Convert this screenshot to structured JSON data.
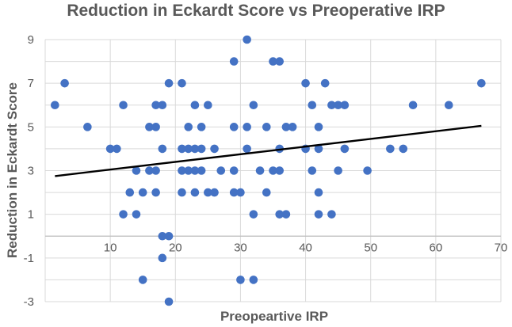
{
  "chart_data": {
    "type": "scatter",
    "title": "Reduction in Eckardt Score vs Preoperative IRP",
    "xlabel": "Preopeartive IRP",
    "ylabel": "Reduction in Eckardt Score",
    "xlim": [
      0,
      70
    ],
    "ylim": [
      -3,
      9
    ],
    "x_ticks": [
      10,
      20,
      30,
      40,
      50,
      60,
      70
    ],
    "y_ticks": [
      -3,
      -1,
      1,
      3,
      5,
      7,
      9
    ],
    "grid": true,
    "marker_color": "#4472C4",
    "trendline": {
      "type": "linear",
      "x": [
        1.5,
        67
      ],
      "y": [
        2.75,
        5.05
      ],
      "color": "#000000"
    },
    "points": [
      {
        "x": 1.5,
        "y": 6
      },
      {
        "x": 3,
        "y": 7
      },
      {
        "x": 6.5,
        "y": 5
      },
      {
        "x": 10,
        "y": 4
      },
      {
        "x": 11,
        "y": 4
      },
      {
        "x": 12,
        "y": 6
      },
      {
        "x": 12,
        "y": 1
      },
      {
        "x": 13,
        "y": 2
      },
      {
        "x": 14,
        "y": 3
      },
      {
        "x": 14,
        "y": 1
      },
      {
        "x": 15,
        "y": 2
      },
      {
        "x": 15,
        "y": -2
      },
      {
        "x": 16,
        "y": 5
      },
      {
        "x": 16,
        "y": 3
      },
      {
        "x": 17,
        "y": 6
      },
      {
        "x": 17,
        "y": 5
      },
      {
        "x": 17,
        "y": 3
      },
      {
        "x": 17,
        "y": 2
      },
      {
        "x": 18,
        "y": 6
      },
      {
        "x": 18,
        "y": 4
      },
      {
        "x": 18,
        "y": 0
      },
      {
        "x": 18,
        "y": -1
      },
      {
        "x": 19,
        "y": 7
      },
      {
        "x": 19,
        "y": 0
      },
      {
        "x": 19,
        "y": -3
      },
      {
        "x": 21,
        "y": 7
      },
      {
        "x": 21,
        "y": 4
      },
      {
        "x": 21,
        "y": 3
      },
      {
        "x": 21,
        "y": 2
      },
      {
        "x": 22,
        "y": 5
      },
      {
        "x": 22,
        "y": 4
      },
      {
        "x": 22,
        "y": 3
      },
      {
        "x": 23,
        "y": 6
      },
      {
        "x": 23,
        "y": 4
      },
      {
        "x": 23,
        "y": 3
      },
      {
        "x": 23,
        "y": 2
      },
      {
        "x": 24,
        "y": 5
      },
      {
        "x": 24,
        "y": 4
      },
      {
        "x": 24,
        "y": 3
      },
      {
        "x": 25,
        "y": 6
      },
      {
        "x": 25,
        "y": 2
      },
      {
        "x": 26,
        "y": 4
      },
      {
        "x": 26,
        "y": 2
      },
      {
        "x": 27,
        "y": 3
      },
      {
        "x": 29,
        "y": 8
      },
      {
        "x": 29,
        "y": 5
      },
      {
        "x": 29,
        "y": 3
      },
      {
        "x": 29,
        "y": 2
      },
      {
        "x": 30,
        "y": 2
      },
      {
        "x": 30,
        "y": -2
      },
      {
        "x": 31,
        "y": 9
      },
      {
        "x": 31,
        "y": 5
      },
      {
        "x": 31,
        "y": 4
      },
      {
        "x": 32,
        "y": 6
      },
      {
        "x": 32,
        "y": 1
      },
      {
        "x": 32,
        "y": -2
      },
      {
        "x": 33,
        "y": 3
      },
      {
        "x": 34,
        "y": 5
      },
      {
        "x": 34,
        "y": 2
      },
      {
        "x": 35,
        "y": 8
      },
      {
        "x": 35,
        "y": 3
      },
      {
        "x": 36,
        "y": 8
      },
      {
        "x": 36,
        "y": 4
      },
      {
        "x": 36,
        "y": 3
      },
      {
        "x": 36,
        "y": 1
      },
      {
        "x": 37,
        "y": 5
      },
      {
        "x": 37,
        "y": 1
      },
      {
        "x": 38,
        "y": 5
      },
      {
        "x": 40,
        "y": 7
      },
      {
        "x": 40,
        "y": 4
      },
      {
        "x": 41,
        "y": 6
      },
      {
        "x": 41,
        "y": 3
      },
      {
        "x": 42,
        "y": 5
      },
      {
        "x": 42,
        "y": 4
      },
      {
        "x": 42,
        "y": 2
      },
      {
        "x": 42,
        "y": 1
      },
      {
        "x": 43,
        "y": 7
      },
      {
        "x": 44,
        "y": 6
      },
      {
        "x": 44,
        "y": 1
      },
      {
        "x": 45,
        "y": 6
      },
      {
        "x": 45,
        "y": 3
      },
      {
        "x": 46,
        "y": 6
      },
      {
        "x": 46,
        "y": 4
      },
      {
        "x": 49.5,
        "y": 3
      },
      {
        "x": 53,
        "y": 4
      },
      {
        "x": 55,
        "y": 4
      },
      {
        "x": 56.5,
        "y": 6
      },
      {
        "x": 62,
        "y": 6
      },
      {
        "x": 67,
        "y": 7
      }
    ]
  }
}
